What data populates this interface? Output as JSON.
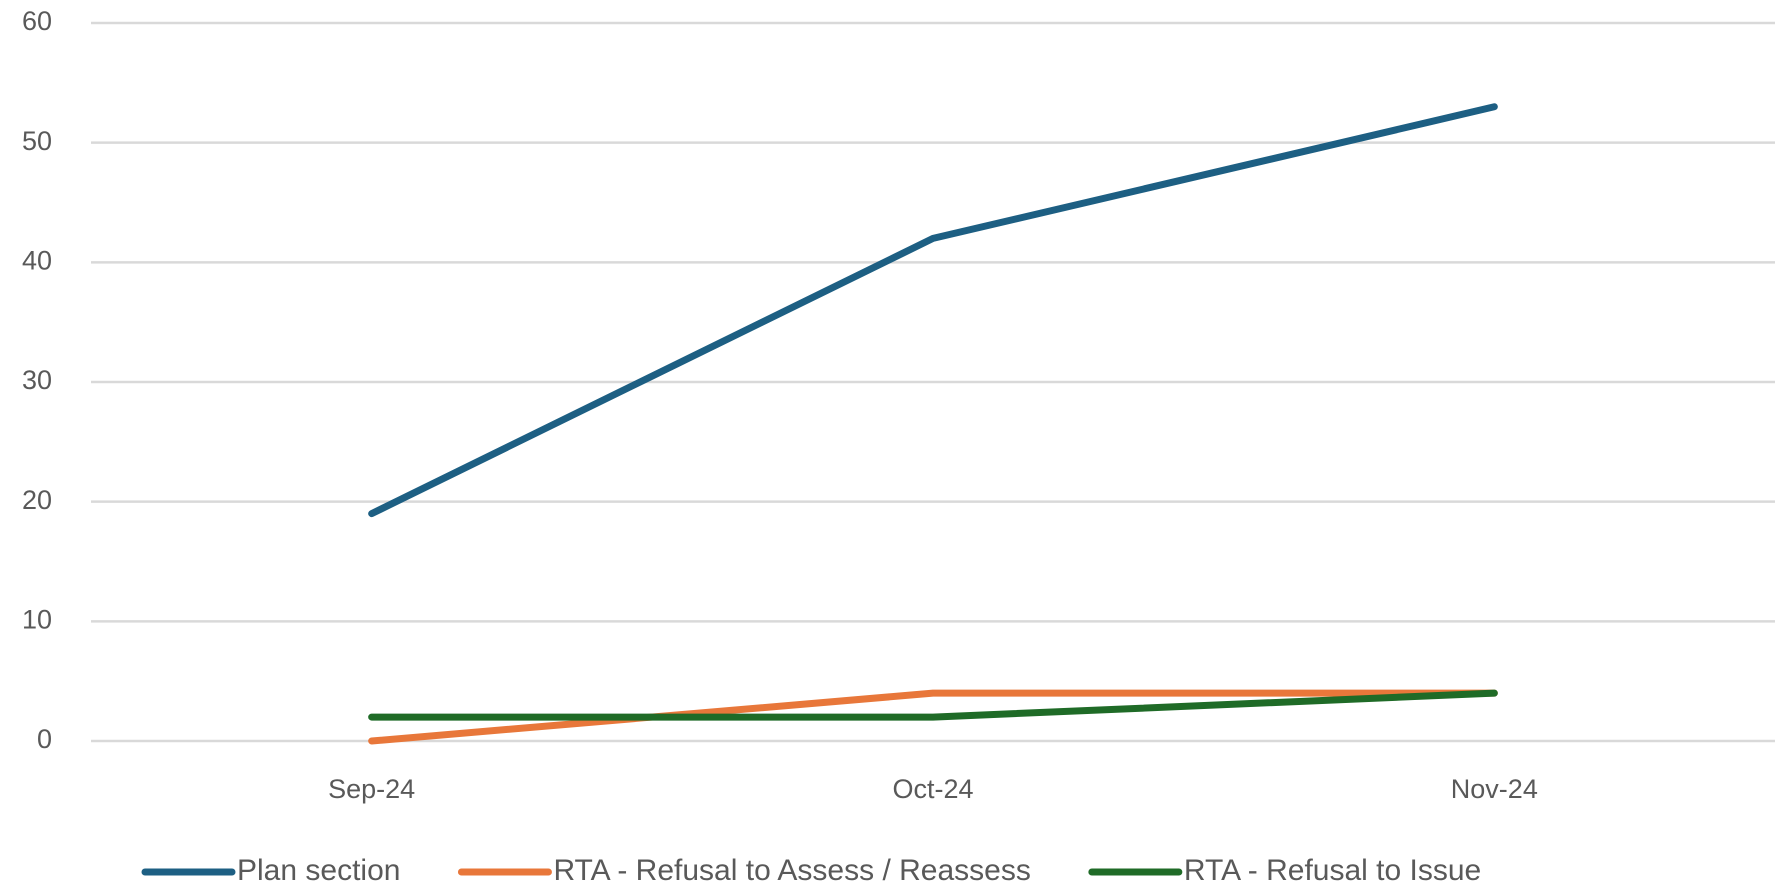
{
  "chart_data": {
    "type": "line",
    "categories": [
      "Sep-24",
      "Oct-24",
      "Nov-24"
    ],
    "series": [
      {
        "name": "Plan section",
        "color": "#1d5f83",
        "values": [
          19,
          42,
          53
        ]
      },
      {
        "name": "RTA - Refusal to Assess / Reassess",
        "color": "#e8773a",
        "values": [
          0,
          4,
          4
        ]
      },
      {
        "name": "RTA - Refusal to Issue",
        "color": "#1f6b27",
        "values": [
          2,
          2,
          4
        ]
      }
    ],
    "ylim": [
      0,
      60
    ],
    "yticks": [
      0,
      10,
      20,
      30,
      40,
      50,
      60
    ],
    "grid": true,
    "legend": "bottom"
  }
}
